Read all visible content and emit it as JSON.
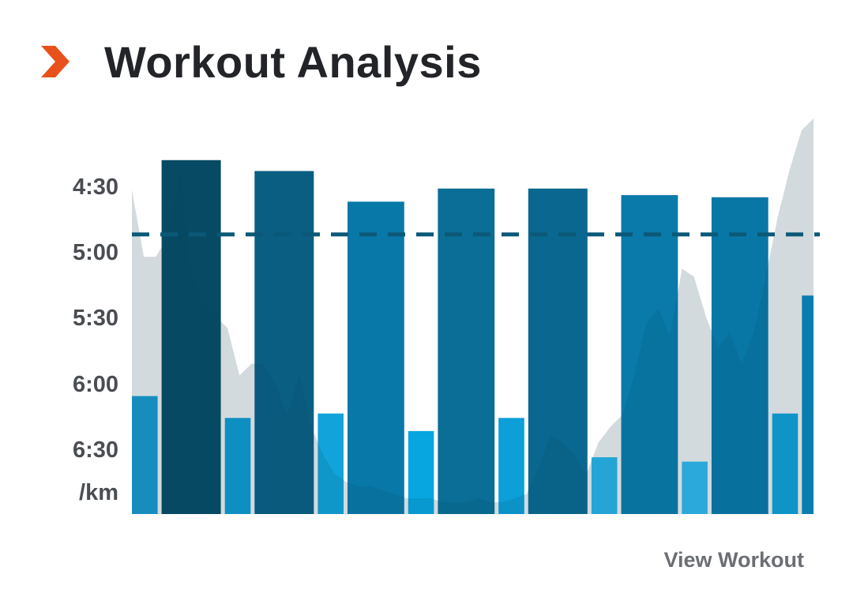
{
  "header": {
    "icon": "chevron-right-icon",
    "title": "Workout Analysis"
  },
  "footer": {
    "view_workout_label": "View Workout"
  },
  "colors": {
    "accent": "#e8501c",
    "target_line": "#0b5878",
    "elevation_fill": "#efefef"
  },
  "chart_data": {
    "type": "bar",
    "title": "",
    "ylabel": "/km",
    "y_unit_label": "/km",
    "y_axis": "pace (min:sec per km), inverted – faster pace plotted higher",
    "yticks": [
      "4:30",
      "5:00",
      "5:30",
      "6:00",
      "6:30"
    ],
    "ylim_seconds": [
      255,
      415
    ],
    "target_pace_seconds": 292,
    "intervals": [
      {
        "kind": "recovery",
        "pace_seconds": 366,
        "rel_width": 1.0,
        "color": "#1a98cc"
      },
      {
        "kind": "work",
        "pace_seconds": 258,
        "rel_width": 2.3,
        "color": "#064a64"
      },
      {
        "kind": "recovery",
        "pace_seconds": 376,
        "rel_width": 1.0,
        "color": "#0f9ad0"
      },
      {
        "kind": "work",
        "pace_seconds": 263,
        "rel_width": 2.3,
        "color": "#0a5e82"
      },
      {
        "kind": "recovery",
        "pace_seconds": 374,
        "rel_width": 1.0,
        "color": "#12a3da"
      },
      {
        "kind": "work",
        "pace_seconds": 277,
        "rel_width": 2.2,
        "color": "#0878a8"
      },
      {
        "kind": "recovery",
        "pace_seconds": 382,
        "rel_width": 1.0,
        "color": "#07a6e0"
      },
      {
        "kind": "work",
        "pace_seconds": 271,
        "rel_width": 2.2,
        "color": "#0a6e96"
      },
      {
        "kind": "recovery",
        "pace_seconds": 376,
        "rel_width": 1.0,
        "color": "#0c9fd8"
      },
      {
        "kind": "work",
        "pace_seconds": 271,
        "rel_width": 2.3,
        "color": "#0a6890"
      },
      {
        "kind": "recovery",
        "pace_seconds": 394,
        "rel_width": 1.0,
        "color": "#2ab2e8"
      },
      {
        "kind": "work",
        "pace_seconds": 274,
        "rel_width": 2.2,
        "color": "#0a7aaa"
      },
      {
        "kind": "recovery",
        "pace_seconds": 396,
        "rel_width": 1.0,
        "color": "#2fb8ec"
      },
      {
        "kind": "work",
        "pace_seconds": 275,
        "rel_width": 2.2,
        "color": "#0977a6"
      },
      {
        "kind": "recovery",
        "pace_seconds": 374,
        "rel_width": 1.0,
        "color": "#11a0d8"
      },
      {
        "kind": "work",
        "pace_seconds": 320,
        "rel_width": 0.45,
        "color": "#0a86bb"
      }
    ],
    "elevation_profile": [
      0.82,
      0.65,
      0.65,
      0.7,
      0.86,
      0.6,
      0.52,
      0.5,
      0.47,
      0.35,
      0.38,
      0.38,
      0.33,
      0.25,
      0.35,
      0.22,
      0.15,
      0.1,
      0.08,
      0.07,
      0.07,
      0.06,
      0.05,
      0.04,
      0.04,
      0.04,
      0.03,
      0.03,
      0.03,
      0.04,
      0.03,
      0.03,
      0.04,
      0.05,
      0.12,
      0.2,
      0.18,
      0.15,
      0.1,
      0.18,
      0.22,
      0.25,
      0.35,
      0.48,
      0.52,
      0.45,
      0.62,
      0.6,
      0.5,
      0.42,
      0.46,
      0.38,
      0.46,
      0.6,
      0.75,
      0.87,
      0.97,
      1.0
    ]
  }
}
